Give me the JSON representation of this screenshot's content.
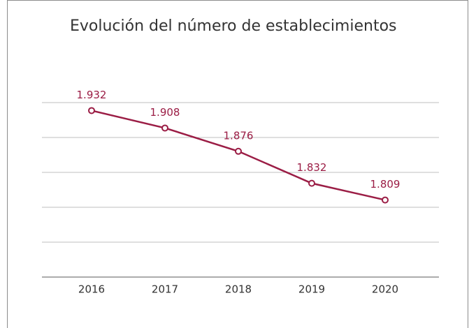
{
  "chart_data": {
    "type": "line",
    "title": "Evolución del número de establecimientos",
    "categories": [
      "2016",
      "2017",
      "2018",
      "2019",
      "2020"
    ],
    "series": [
      {
        "color": "#9b1d45",
        "values": [
          1932,
          1908,
          1876,
          1832,
          1809
        ],
        "value_labels": [
          "1.932",
          "1.908",
          "1.876",
          "1.832",
          "1.809"
        ]
      }
    ],
    "ylim": [
      1703,
      1943
    ],
    "yticks": [
      1703,
      1751,
      1799,
      1847,
      1895,
      1943
    ],
    "grid": true
  }
}
